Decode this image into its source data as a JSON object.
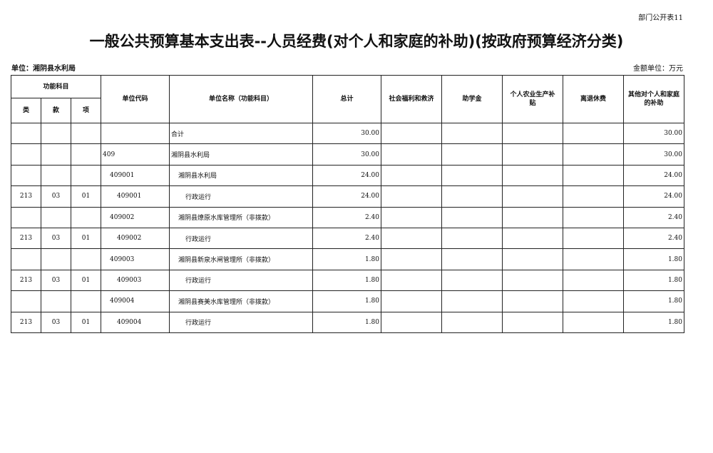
{
  "header": {
    "form_no": "部门公开表11",
    "title": "一般公共预算基本支出表--人员经费(对个人和家庭的补助)(按政府预算经济分类)",
    "unit": "单位：湘阴县水利局",
    "amount_unit": "金额单位：万元"
  },
  "table": {
    "group_header": "功能科目",
    "columns": [
      "类",
      "款",
      "项",
      "单位代码",
      "单位名称（功能科目）",
      "总计",
      "社会福利和救济",
      "助学金",
      "个人农业生产补贴",
      "离退休费",
      "其他对个人和家庭的补助"
    ],
    "rows": [
      {
        "name": "合计",
        "total": "30.00",
        "other": "30.00"
      },
      {
        "code": "409",
        "name": "湘阴县水利局",
        "total": "30.00",
        "other": "30.00"
      },
      {
        "code": "409001",
        "name": "湘阴县水利局",
        "total": "24.00",
        "other": "24.00"
      },
      {
        "lei": "213",
        "kuan": "03",
        "xiang": "01",
        "code": "409001",
        "name": "行政运行",
        "total": "24.00",
        "other": "24.00"
      },
      {
        "code": "409002",
        "name": "湘阴县燎原水库管理所（非拨款）",
        "total": "2.40",
        "other": "2.40"
      },
      {
        "lei": "213",
        "kuan": "03",
        "xiang": "01",
        "code": "409002",
        "name": "行政运行",
        "total": "2.40",
        "other": "2.40"
      },
      {
        "code": "409003",
        "name": "湘阴县新泉水闸管理所（非拨款）",
        "total": "1.80",
        "other": "1.80"
      },
      {
        "lei": "213",
        "kuan": "03",
        "xiang": "01",
        "code": "409003",
        "name": "行政运行",
        "total": "1.80",
        "other": "1.80"
      },
      {
        "code": "409004",
        "name": "湘阴县赛美水库管理所（非拨款）",
        "total": "1.80",
        "other": "1.80"
      },
      {
        "lei": "213",
        "kuan": "03",
        "xiang": "01",
        "code": "409004",
        "name": "行政运行",
        "total": "1.80",
        "other": "1.80"
      }
    ]
  }
}
